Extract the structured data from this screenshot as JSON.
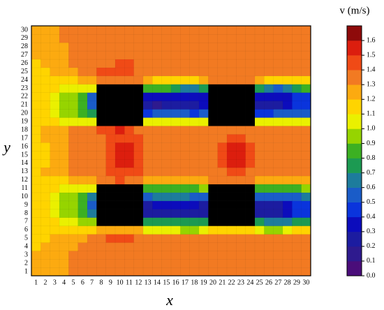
{
  "chart_data": {
    "type": "heatmap",
    "x_label": "x",
    "y_label": "y",
    "colorbar_title": "v (m/s)",
    "x": [
      1,
      2,
      3,
      4,
      5,
      6,
      7,
      8,
      9,
      10,
      11,
      12,
      13,
      14,
      15,
      16,
      17,
      18,
      19,
      20,
      21,
      22,
      23,
      24,
      25,
      26,
      27,
      28,
      29,
      30
    ],
    "y": [
      1,
      2,
      3,
      4,
      5,
      6,
      7,
      8,
      9,
      10,
      11,
      12,
      13,
      14,
      15,
      16,
      17,
      18,
      19,
      20,
      21,
      22,
      23,
      24,
      25,
      26,
      27,
      28,
      29,
      30
    ],
    "values": [
      [
        1.2,
        1.2,
        1.2,
        1.2,
        1.3,
        1.3,
        1.3,
        1.3,
        1.3,
        1.3,
        1.3,
        1.3,
        1.3,
        1.3,
        1.3,
        1.3,
        1.3,
        1.3,
        1.3,
        1.3,
        1.3,
        1.3,
        1.3,
        1.3,
        1.3,
        1.3,
        1.3,
        1.3,
        1.3,
        1.3
      ],
      [
        1.2,
        1.2,
        1.2,
        1.2,
        1.3,
        1.3,
        1.3,
        1.3,
        1.3,
        1.3,
        1.3,
        1.3,
        1.3,
        1.3,
        1.3,
        1.3,
        1.3,
        1.3,
        1.3,
        1.3,
        1.3,
        1.3,
        1.3,
        1.3,
        1.3,
        1.3,
        1.3,
        1.3,
        1.3,
        1.3
      ],
      [
        1.2,
        1.2,
        1.2,
        1.2,
        1.3,
        1.3,
        1.3,
        1.3,
        1.3,
        1.3,
        1.3,
        1.3,
        1.3,
        1.3,
        1.3,
        1.3,
        1.3,
        1.3,
        1.3,
        1.3,
        1.3,
        1.3,
        1.3,
        1.3,
        1.3,
        1.3,
        1.3,
        1.3,
        1.3,
        1.3
      ],
      [
        1.1,
        1.2,
        1.2,
        1.2,
        1.2,
        1.3,
        1.3,
        1.3,
        1.3,
        1.3,
        1.3,
        1.3,
        1.3,
        1.3,
        1.3,
        1.3,
        1.3,
        1.3,
        1.3,
        1.3,
        1.3,
        1.3,
        1.3,
        1.3,
        1.3,
        1.3,
        1.3,
        1.3,
        1.3,
        1.3
      ],
      [
        1.1,
        1.1,
        1.2,
        1.2,
        1.2,
        1.2,
        1.3,
        1.3,
        1.4,
        1.4,
        1.4,
        1.3,
        1.3,
        1.3,
        1.3,
        1.3,
        1.3,
        1.3,
        1.3,
        1.3,
        1.3,
        1.3,
        1.3,
        1.3,
        1.3,
        1.3,
        1.3,
        1.3,
        1.3,
        1.3
      ],
      [
        1.1,
        1.1,
        1.1,
        1.1,
        1.1,
        1.1,
        1.1,
        1.2,
        1.2,
        1.2,
        1.2,
        1.2,
        1.0,
        1.0,
        1.0,
        1.0,
        0.9,
        0.9,
        1.0,
        1.1,
        1.1,
        1.1,
        1.1,
        1.1,
        1.0,
        0.9,
        0.9,
        1.0,
        1.1,
        1.1
      ],
      [
        1.1,
        1.1,
        1.1,
        1.0,
        1.0,
        0.9,
        0.9,
        null,
        null,
        null,
        null,
        null,
        0.7,
        0.7,
        0.7,
        0.7,
        0.7,
        0.7,
        0.7,
        null,
        null,
        null,
        null,
        null,
        0.7,
        0.6,
        0.6,
        0.6,
        0.7,
        0.7
      ],
      [
        1.1,
        1.1,
        1.0,
        0.9,
        0.9,
        0.8,
        0.6,
        null,
        null,
        null,
        null,
        null,
        0.2,
        0.2,
        0.2,
        0.2,
        0.2,
        0.2,
        0.2,
        null,
        null,
        null,
        null,
        null,
        0.2,
        0.2,
        0.2,
        0.3,
        0.4,
        0.4
      ],
      [
        1.1,
        1.1,
        1.0,
        0.9,
        0.9,
        0.8,
        0.5,
        null,
        null,
        null,
        null,
        null,
        0.2,
        0.3,
        0.3,
        0.3,
        0.3,
        0.3,
        0.2,
        null,
        null,
        null,
        null,
        null,
        0.2,
        0.2,
        0.2,
        0.3,
        0.4,
        0.4
      ],
      [
        1.1,
        1.1,
        1.0,
        0.9,
        0.9,
        0.8,
        0.6,
        null,
        null,
        null,
        null,
        null,
        0.5,
        0.6,
        0.6,
        0.6,
        0.6,
        0.5,
        0.5,
        null,
        null,
        null,
        null,
        null,
        0.5,
        0.5,
        0.5,
        0.5,
        0.5,
        0.6
      ],
      [
        1.1,
        1.1,
        1.1,
        1.0,
        1.0,
        1.0,
        1.0,
        null,
        null,
        null,
        null,
        null,
        0.8,
        0.8,
        0.8,
        0.8,
        0.8,
        0.8,
        0.9,
        null,
        null,
        null,
        null,
        null,
        0.8,
        0.8,
        0.8,
        0.8,
        0.8,
        0.9
      ],
      [
        1.1,
        1.1,
        1.1,
        1.1,
        1.2,
        1.2,
        1.2,
        1.3,
        1.3,
        1.4,
        1.3,
        1.3,
        1.2,
        1.2,
        1.2,
        1.2,
        1.2,
        1.2,
        1.2,
        1.3,
        1.3,
        1.3,
        1.3,
        1.3,
        1.2,
        1.2,
        1.2,
        1.2,
        1.2,
        1.2
      ],
      [
        1.1,
        1.2,
        1.2,
        1.2,
        1.3,
        1.3,
        1.3,
        1.3,
        1.4,
        1.4,
        1.4,
        1.4,
        1.3,
        1.3,
        1.3,
        1.3,
        1.3,
        1.3,
        1.3,
        1.3,
        1.3,
        1.4,
        1.4,
        1.3,
        1.3,
        1.3,
        1.3,
        1.3,
        1.3,
        1.3
      ],
      [
        1.1,
        1.1,
        1.2,
        1.2,
        1.3,
        1.3,
        1.3,
        1.3,
        1.4,
        1.5,
        1.5,
        1.4,
        1.3,
        1.3,
        1.3,
        1.3,
        1.3,
        1.3,
        1.3,
        1.3,
        1.4,
        1.5,
        1.5,
        1.4,
        1.3,
        1.3,
        1.3,
        1.3,
        1.3,
        1.3
      ],
      [
        1.1,
        1.1,
        1.2,
        1.2,
        1.3,
        1.3,
        1.3,
        1.3,
        1.4,
        1.5,
        1.5,
        1.4,
        1.3,
        1.3,
        1.3,
        1.3,
        1.3,
        1.3,
        1.3,
        1.3,
        1.4,
        1.5,
        1.5,
        1.4,
        1.3,
        1.3,
        1.3,
        1.3,
        1.3,
        1.3
      ],
      [
        1.1,
        1.1,
        1.2,
        1.2,
        1.3,
        1.3,
        1.3,
        1.3,
        1.4,
        1.5,
        1.5,
        1.4,
        1.3,
        1.3,
        1.3,
        1.3,
        1.3,
        1.3,
        1.3,
        1.3,
        1.4,
        1.5,
        1.5,
        1.4,
        1.3,
        1.3,
        1.3,
        1.3,
        1.3,
        1.3
      ],
      [
        1.1,
        1.2,
        1.2,
        1.2,
        1.3,
        1.3,
        1.3,
        1.3,
        1.4,
        1.4,
        1.4,
        1.4,
        1.3,
        1.3,
        1.3,
        1.3,
        1.3,
        1.3,
        1.3,
        1.3,
        1.3,
        1.4,
        1.4,
        1.3,
        1.3,
        1.3,
        1.3,
        1.3,
        1.3,
        1.3
      ],
      [
        1.1,
        1.2,
        1.2,
        1.2,
        1.3,
        1.3,
        1.3,
        1.4,
        1.4,
        1.5,
        1.4,
        1.3,
        1.3,
        1.3,
        1.3,
        1.3,
        1.3,
        1.3,
        1.3,
        1.3,
        1.3,
        1.3,
        1.3,
        1.3,
        1.3,
        1.3,
        1.3,
        1.3,
        1.3,
        1.3
      ],
      [
        1.1,
        1.1,
        1.1,
        1.0,
        1.0,
        1.0,
        1.0,
        null,
        null,
        null,
        null,
        null,
        1.0,
        1.0,
        1.0,
        1.0,
        1.0,
        1.0,
        1.0,
        null,
        null,
        null,
        null,
        null,
        1.0,
        1.0,
        1.0,
        1.0,
        1.0,
        1.0
      ],
      [
        1.1,
        1.1,
        1.0,
        0.9,
        0.9,
        0.8,
        0.7,
        null,
        null,
        null,
        null,
        null,
        0.4,
        0.5,
        0.5,
        0.5,
        0.5,
        0.4,
        0.5,
        null,
        null,
        null,
        null,
        null,
        0.4,
        0.4,
        0.5,
        0.5,
        0.5,
        0.5
      ],
      [
        1.1,
        1.1,
        1.0,
        0.9,
        0.9,
        0.8,
        0.5,
        null,
        null,
        null,
        null,
        null,
        0.2,
        0.1,
        0.2,
        0.2,
        0.2,
        0.2,
        0.3,
        null,
        null,
        null,
        null,
        null,
        0.2,
        0.2,
        0.2,
        0.3,
        0.4,
        0.4
      ],
      [
        1.1,
        1.1,
        1.0,
        0.9,
        0.9,
        0.8,
        0.5,
        null,
        null,
        null,
        null,
        null,
        0.3,
        0.3,
        0.3,
        0.3,
        0.3,
        0.3,
        0.3,
        null,
        null,
        null,
        null,
        null,
        0.3,
        0.3,
        0.3,
        0.3,
        0.4,
        0.4
      ],
      [
        1.1,
        1.1,
        1.1,
        1.0,
        1.0,
        1.0,
        1.0,
        null,
        null,
        null,
        null,
        null,
        0.8,
        0.8,
        0.8,
        0.7,
        0.6,
        0.6,
        0.7,
        null,
        null,
        null,
        null,
        null,
        0.7,
        0.6,
        0.5,
        0.6,
        0.7,
        0.8
      ],
      [
        1.1,
        1.1,
        1.1,
        1.1,
        1.1,
        1.2,
        1.2,
        1.3,
        1.3,
        1.3,
        1.3,
        1.3,
        1.2,
        1.1,
        1.1,
        1.1,
        1.1,
        1.1,
        1.2,
        1.3,
        1.3,
        1.3,
        1.3,
        1.3,
        1.2,
        1.1,
        1.1,
        1.1,
        1.1,
        1.1
      ],
      [
        1.1,
        1.1,
        1.2,
        1.2,
        1.2,
        1.3,
        1.3,
        1.4,
        1.4,
        1.4,
        1.4,
        1.3,
        1.3,
        1.3,
        1.3,
        1.3,
        1.3,
        1.3,
        1.3,
        1.3,
        1.3,
        1.3,
        1.3,
        1.3,
        1.3,
        1.3,
        1.3,
        1.3,
        1.3,
        1.3
      ],
      [
        1.1,
        1.2,
        1.2,
        1.2,
        1.3,
        1.3,
        1.3,
        1.3,
        1.3,
        1.4,
        1.4,
        1.3,
        1.3,
        1.3,
        1.3,
        1.3,
        1.3,
        1.3,
        1.3,
        1.3,
        1.3,
        1.3,
        1.3,
        1.3,
        1.3,
        1.3,
        1.3,
        1.3,
        1.3,
        1.3
      ],
      [
        1.2,
        1.2,
        1.2,
        1.2,
        1.3,
        1.3,
        1.3,
        1.3,
        1.3,
        1.3,
        1.3,
        1.3,
        1.3,
        1.3,
        1.3,
        1.3,
        1.3,
        1.3,
        1.3,
        1.3,
        1.3,
        1.3,
        1.3,
        1.3,
        1.3,
        1.3,
        1.3,
        1.3,
        1.3,
        1.3
      ],
      [
        1.2,
        1.2,
        1.2,
        1.2,
        1.3,
        1.3,
        1.3,
        1.3,
        1.3,
        1.3,
        1.3,
        1.3,
        1.3,
        1.3,
        1.3,
        1.3,
        1.3,
        1.3,
        1.3,
        1.3,
        1.3,
        1.3,
        1.3,
        1.3,
        1.3,
        1.3,
        1.3,
        1.3,
        1.3,
        1.3
      ],
      [
        1.2,
        1.2,
        1.2,
        1.3,
        1.3,
        1.3,
        1.3,
        1.3,
        1.3,
        1.3,
        1.3,
        1.3,
        1.3,
        1.3,
        1.3,
        1.3,
        1.3,
        1.3,
        1.3,
        1.3,
        1.3,
        1.3,
        1.3,
        1.3,
        1.3,
        1.3,
        1.3,
        1.3,
        1.3,
        1.3
      ],
      [
        1.2,
        1.2,
        1.2,
        1.3,
        1.3,
        1.3,
        1.3,
        1.3,
        1.3,
        1.3,
        1.3,
        1.3,
        1.3,
        1.3,
        1.3,
        1.3,
        1.3,
        1.3,
        1.3,
        1.3,
        1.3,
        1.3,
        1.3,
        1.3,
        1.3,
        1.3,
        1.3,
        1.3,
        1.3,
        1.3
      ]
    ],
    "null_color": "#000000",
    "zlim": [
      0,
      1.7
    ],
    "colors": [
      "#4a0d7a",
      "#2e1a8e",
      "#1c1ca0",
      "#0c0cbc",
      "#0a34dc",
      "#1a5cc8",
      "#1d7c9c",
      "#1c9a52",
      "#3cb022",
      "#96d400",
      "#eaf000",
      "#ffd400",
      "#fcaa10",
      "#f27a22",
      "#f04a16",
      "#dc1e0e",
      "#8e0a0a"
    ],
    "zticks": [
      {
        "value": 0,
        "label": "0.0"
      },
      0.1,
      0.2,
      0.3,
      0.4,
      0.5,
      0.6,
      0.7,
      0.8,
      0.9,
      {
        "value": 1,
        "label": "1.0"
      },
      1.1,
      1.2,
      1.3,
      1.4,
      1.5,
      1.6
    ]
  }
}
